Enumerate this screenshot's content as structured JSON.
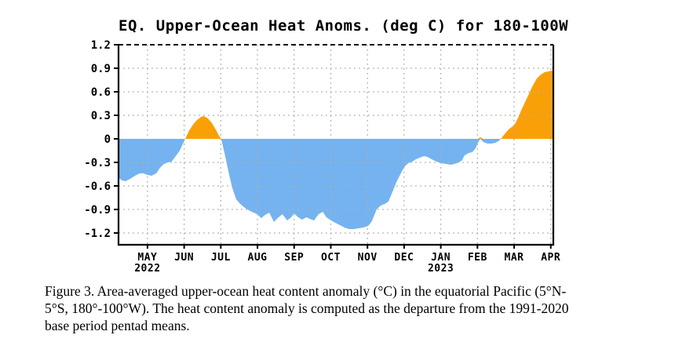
{
  "figure": {
    "caption_lines": [
      "Figure 3. Area-averaged upper-ocean heat content anomaly (°C) in the equatorial Pacific (5°N-",
      "5°S, 180°-100°W). The heat content anomaly is computed as the departure from the 1991-2020",
      "base period pentad means."
    ]
  },
  "chart_data": {
    "type": "area",
    "title": "EQ. Upper-Ocean Heat Anoms. (deg C) for 180-100W",
    "ylabel": "deg C",
    "xlabel": "",
    "grid": true,
    "y_axis": {
      "tick_values": [
        1.2,
        0.9,
        0.6,
        0.3,
        0,
        -0.3,
        -0.6,
        -0.9,
        -1.2
      ],
      "tick_labels": [
        "1.2",
        "0.9",
        "0.6",
        "0.3",
        "0",
        "-0.3",
        "-0.6",
        "-0.9",
        "-1.2"
      ],
      "max": 1.2,
      "min": -1.35
    },
    "x_axis": {
      "months": [
        {
          "label": "MAY",
          "year": "2022"
        },
        {
          "label": "JUN",
          "year": ""
        },
        {
          "label": "JUL",
          "year": ""
        },
        {
          "label": "AUG",
          "year": ""
        },
        {
          "label": "SEP",
          "year": ""
        },
        {
          "label": "OCT",
          "year": ""
        },
        {
          "label": "NOV",
          "year": ""
        },
        {
          "label": "DEC",
          "year": ""
        },
        {
          "label": "JAN",
          "year": "2023"
        },
        {
          "label": "FEB",
          "year": ""
        },
        {
          "label": "MAR",
          "year": ""
        },
        {
          "label": "APR",
          "year": ""
        }
      ],
      "domain_min_month_offset": -0.79,
      "domain_max_month_offset": 11.07
    },
    "series": [
      {
        "name": "upper-ocean heat content anomaly (deg C), pentad",
        "points_month_value": [
          [
            -0.79,
            -0.5
          ],
          [
            -0.69,
            -0.53
          ],
          [
            -0.6,
            -0.54
          ],
          [
            -0.47,
            -0.51
          ],
          [
            -0.34,
            -0.47
          ],
          [
            -0.21,
            -0.44
          ],
          [
            -0.11,
            -0.44
          ],
          [
            0.0,
            -0.46
          ],
          [
            0.11,
            -0.47
          ],
          [
            0.24,
            -0.44
          ],
          [
            0.34,
            -0.37
          ],
          [
            0.45,
            -0.32
          ],
          [
            0.56,
            -0.3
          ],
          [
            0.66,
            -0.29
          ],
          [
            0.77,
            -0.22
          ],
          [
            0.88,
            -0.15
          ],
          [
            0.96,
            -0.07
          ],
          [
            1.03,
            0.0
          ],
          [
            1.13,
            0.1
          ],
          [
            1.24,
            0.18
          ],
          [
            1.35,
            0.24
          ],
          [
            1.46,
            0.28
          ],
          [
            1.54,
            0.29
          ],
          [
            1.65,
            0.26
          ],
          [
            1.76,
            0.2
          ],
          [
            1.86,
            0.12
          ],
          [
            1.95,
            0.04
          ],
          [
            2.01,
            0.0
          ],
          [
            2.1,
            -0.18
          ],
          [
            2.21,
            -0.42
          ],
          [
            2.31,
            -0.62
          ],
          [
            2.42,
            -0.77
          ],
          [
            2.53,
            -0.83
          ],
          [
            2.63,
            -0.87
          ],
          [
            2.76,
            -0.91
          ],
          [
            2.89,
            -0.94
          ],
          [
            3.0,
            -0.96
          ],
          [
            3.1,
            -1.01
          ],
          [
            3.21,
            -0.97
          ],
          [
            3.32,
            -0.94
          ],
          [
            3.45,
            -1.06
          ],
          [
            3.55,
            -1.01
          ],
          [
            3.68,
            -0.96
          ],
          [
            3.81,
            -1.04
          ],
          [
            3.92,
            -1.0
          ],
          [
            4.0,
            -0.95
          ],
          [
            4.11,
            -1.0
          ],
          [
            4.22,
            -1.03
          ],
          [
            4.33,
            -1.0
          ],
          [
            4.43,
            -1.02
          ],
          [
            4.54,
            -1.04
          ],
          [
            4.67,
            -0.96
          ],
          [
            4.78,
            -0.93
          ],
          [
            4.88,
            -1.0
          ],
          [
            5.01,
            -1.04
          ],
          [
            5.12,
            -1.07
          ],
          [
            5.25,
            -1.1
          ],
          [
            5.37,
            -1.13
          ],
          [
            5.5,
            -1.15
          ],
          [
            5.63,
            -1.15
          ],
          [
            5.76,
            -1.14
          ],
          [
            5.89,
            -1.13
          ],
          [
            6.02,
            -1.11
          ],
          [
            6.12,
            -1.05
          ],
          [
            6.25,
            -0.9
          ],
          [
            6.36,
            -0.85
          ],
          [
            6.47,
            -0.83
          ],
          [
            6.57,
            -0.8
          ],
          [
            6.68,
            -0.68
          ],
          [
            6.79,
            -0.55
          ],
          [
            6.9,
            -0.45
          ],
          [
            7.0,
            -0.36
          ],
          [
            7.11,
            -0.31
          ],
          [
            7.22,
            -0.29
          ],
          [
            7.32,
            -0.26
          ],
          [
            7.43,
            -0.24
          ],
          [
            7.54,
            -0.22
          ],
          [
            7.64,
            -0.23
          ],
          [
            7.75,
            -0.26
          ],
          [
            7.88,
            -0.29
          ],
          [
            8.01,
            -0.31
          ],
          [
            8.14,
            -0.32
          ],
          [
            8.29,
            -0.33
          ],
          [
            8.44,
            -0.31
          ],
          [
            8.57,
            -0.28
          ],
          [
            8.65,
            -0.21
          ],
          [
            8.76,
            -0.18
          ],
          [
            8.86,
            -0.17
          ],
          [
            8.95,
            -0.12
          ],
          [
            9.01,
            -0.05
          ],
          [
            9.08,
            0.02
          ],
          [
            9.16,
            -0.04
          ],
          [
            9.27,
            -0.06
          ],
          [
            9.38,
            -0.06
          ],
          [
            9.49,
            -0.05
          ],
          [
            9.57,
            -0.03
          ],
          [
            9.64,
            0.0
          ],
          [
            9.74,
            0.06
          ],
          [
            9.85,
            0.12
          ],
          [
            9.96,
            0.16
          ],
          [
            10.02,
            0.19
          ],
          [
            10.11,
            0.27
          ],
          [
            10.19,
            0.36
          ],
          [
            10.3,
            0.47
          ],
          [
            10.41,
            0.58
          ],
          [
            10.51,
            0.68
          ],
          [
            10.62,
            0.77
          ],
          [
            10.73,
            0.82
          ],
          [
            10.83,
            0.85
          ],
          [
            10.94,
            0.86
          ],
          [
            11.03,
            0.87
          ],
          [
            11.07,
            0.87
          ]
        ]
      }
    ],
    "colors": {
      "positive_fill": "#F9A008",
      "negative_fill": "#74B3F0",
      "grid": "#B3AEA4",
      "frame": "#000000",
      "text": "#000000"
    },
    "legend": "none"
  }
}
